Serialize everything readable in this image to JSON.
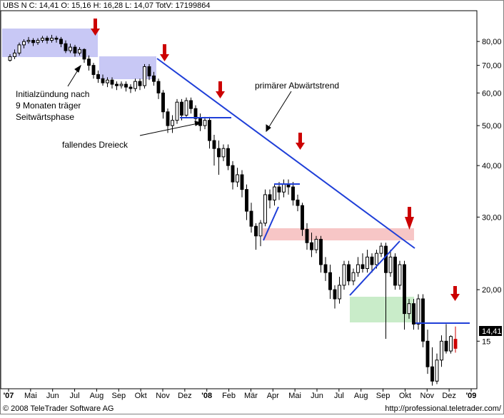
{
  "header": "UBS N C: 14,41 O: 15,16 H: 16,28 L: 14,07 TotV: 17199864",
  "footer_left": "© 2008 TeleTrader Software AG",
  "footer_right": "http://professional.teletrader.com/",
  "last_price_label": "14,41",
  "chart_data": {
    "type": "candlestick",
    "y_scale": "log",
    "ylim": [
      11.5,
      95
    ],
    "y_ticks": [
      {
        "value": 80,
        "label": "80,00"
      },
      {
        "value": 70,
        "label": "70,00"
      },
      {
        "value": 60,
        "label": "60,00"
      },
      {
        "value": 50,
        "label": "50,00"
      },
      {
        "value": 40,
        "label": "40,00"
      },
      {
        "value": 30,
        "label": "30,00"
      },
      {
        "value": 20,
        "label": "20,00"
      },
      {
        "value": 15,
        "label": "15"
      }
    ],
    "x_ticks": [
      "'07",
      "Mai",
      "Jun",
      "Jul",
      "Aug",
      "Sep",
      "Okt",
      "Nov",
      "Dez",
      "'08",
      "Feb",
      "Mär",
      "Apr",
      "Mai",
      "Jun",
      "Jul",
      "Aug",
      "Sep",
      "Okt",
      "Nov",
      "Dez",
      "'09"
    ],
    "colors": {
      "up": "#ffffff",
      "down": "#000000",
      "trend": "#1f3fd8",
      "arrow": "#cc0000",
      "blue_box": "#c8c8f5",
      "red_box": "#f7c6c6",
      "green_box": "#c9ecc9"
    },
    "annotations": [
      "Initialzündung nach",
      "9 Monaten träger",
      "Seitwärtsphase",
      "fallendes Dreieck",
      "primärer Abwärtstrend"
    ],
    "candles_weekly": [
      [
        72,
        73.5,
        74.5,
        71.5
      ],
      [
        73.5,
        75,
        76.5,
        72.5
      ],
      [
        75,
        78.5,
        79.5,
        74
      ],
      [
        78.5,
        80,
        81,
        77
      ],
      [
        80,
        80.5,
        82,
        79
      ],
      [
        80.5,
        79.5,
        81.5,
        78
      ],
      [
        79.5,
        80.5,
        81.5,
        78.5
      ],
      [
        80.5,
        81.5,
        82.5,
        79.5
      ],
      [
        81.5,
        80.5,
        82.5,
        79
      ],
      [
        80.5,
        81.5,
        83,
        79.5
      ],
      [
        81.5,
        81,
        82.5,
        79.5
      ],
      [
        81,
        79,
        82,
        77.5
      ],
      [
        79,
        76,
        80.5,
        75
      ],
      [
        76,
        77.5,
        79,
        75
      ],
      [
        77.5,
        75,
        78.5,
        73.5
      ],
      [
        75,
        76.5,
        77.5,
        74
      ],
      [
        76.5,
        72.5,
        77,
        71
      ],
      [
        72.5,
        70,
        74,
        68
      ],
      [
        70,
        66.5,
        71,
        65
      ],
      [
        66.5,
        65,
        68,
        63.5
      ],
      [
        65,
        63.5,
        66.5,
        62.5
      ],
      [
        63.5,
        64.5,
        65.5,
        62
      ],
      [
        64.5,
        63,
        65.5,
        61.5
      ],
      [
        63,
        62.5,
        64,
        61
      ],
      [
        62.5,
        63,
        64,
        61.5
      ],
      [
        63,
        62,
        64,
        60.5
      ],
      [
        62,
        61.5,
        63,
        60
      ],
      [
        61.5,
        64,
        65,
        60.5
      ],
      [
        64,
        62.5,
        65,
        61
      ],
      [
        62.5,
        69.5,
        70.5,
        61.5
      ],
      [
        69.5,
        66,
        70.5,
        64.5
      ],
      [
        66,
        64,
        67.5,
        62.5
      ],
      [
        64,
        60,
        65,
        58
      ],
      [
        60,
        54,
        61,
        52
      ],
      [
        54,
        50,
        55,
        48
      ],
      [
        50,
        51.5,
        53,
        48
      ],
      [
        51.5,
        57,
        58,
        50.5
      ],
      [
        57,
        53,
        58,
        51.5
      ],
      [
        53,
        57.5,
        58.5,
        52.5
      ],
      [
        57.5,
        55,
        58.5,
        53.5
      ],
      [
        55,
        52,
        56,
        50
      ],
      [
        52,
        50,
        53.5,
        48.5
      ],
      [
        50,
        51.5,
        52.5,
        49
      ],
      [
        51.5,
        46,
        52.5,
        44
      ],
      [
        46,
        44,
        47.5,
        40
      ],
      [
        44,
        42,
        46,
        38
      ],
      [
        42,
        44,
        45,
        41
      ],
      [
        44,
        40,
        45,
        39
      ],
      [
        40,
        36.5,
        41,
        35
      ],
      [
        36.5,
        38,
        39.5,
        35.5
      ],
      [
        38,
        35,
        39,
        33.5
      ],
      [
        35,
        31,
        36,
        29.5
      ],
      [
        31,
        28.5,
        32.5,
        27.5
      ],
      [
        28.5,
        27,
        29,
        25
      ],
      [
        27,
        29,
        29.5,
        25.5
      ],
      [
        29,
        34,
        35,
        28.5
      ],
      [
        34,
        33,
        35,
        31.5
      ],
      [
        33,
        35.5,
        36,
        32
      ],
      [
        35.5,
        34.5,
        36.5,
        33
      ],
      [
        34.5,
        36,
        37,
        33.5
      ],
      [
        36,
        35.5,
        37,
        34
      ],
      [
        35.5,
        33,
        36.5,
        32
      ],
      [
        33,
        32,
        34,
        31
      ],
      [
        32,
        28,
        32.5,
        27
      ],
      [
        28,
        26,
        29,
        25
      ],
      [
        26,
        25,
        27.5,
        24
      ],
      [
        25,
        26.5,
        27,
        24.5
      ],
      [
        26.5,
        23,
        27,
        22
      ],
      [
        23,
        22,
        24,
        21
      ],
      [
        22,
        20,
        23,
        19
      ],
      [
        20,
        19,
        20.5,
        18
      ],
      [
        19,
        20.5,
        21.5,
        18.5
      ],
      [
        20.5,
        23,
        23.5,
        20
      ],
      [
        23,
        21,
        23.5,
        20.5
      ],
      [
        21,
        22,
        22.5,
        20.5
      ],
      [
        22,
        23,
        24,
        21.5
      ],
      [
        23,
        22.5,
        24.5,
        22
      ],
      [
        22.5,
        24,
        25,
        22
      ],
      [
        24,
        23,
        24.5,
        22
      ],
      [
        23,
        24.5,
        25,
        22.5
      ],
      [
        24.5,
        25.5,
        26,
        24
      ],
      [
        25.5,
        22,
        26,
        15.2
      ],
      [
        22,
        24,
        25,
        21.5
      ],
      [
        24,
        20.5,
        24.5,
        20
      ],
      [
        20.5,
        23,
        23.5,
        20
      ],
      [
        23,
        17.5,
        23.5,
        16
      ],
      [
        17.5,
        18.5,
        19,
        17
      ],
      [
        18.5,
        16.5,
        19,
        16
      ],
      [
        16.5,
        19,
        19.5,
        16
      ],
      [
        19,
        15,
        19.5,
        14.5
      ],
      [
        15,
        13,
        16,
        12.5
      ],
      [
        13,
        12,
        14.5,
        11.7
      ],
      [
        12,
        13.5,
        14,
        11.8
      ],
      [
        13.5,
        15,
        15.5,
        13
      ],
      [
        15,
        14.2,
        16.5,
        14
      ],
      [
        14.2,
        15.4,
        15.5,
        14
      ]
    ],
    "last_candle": {
      "open": 15.16,
      "high": 16.28,
      "low": 14.07,
      "close": 14.41
    }
  }
}
